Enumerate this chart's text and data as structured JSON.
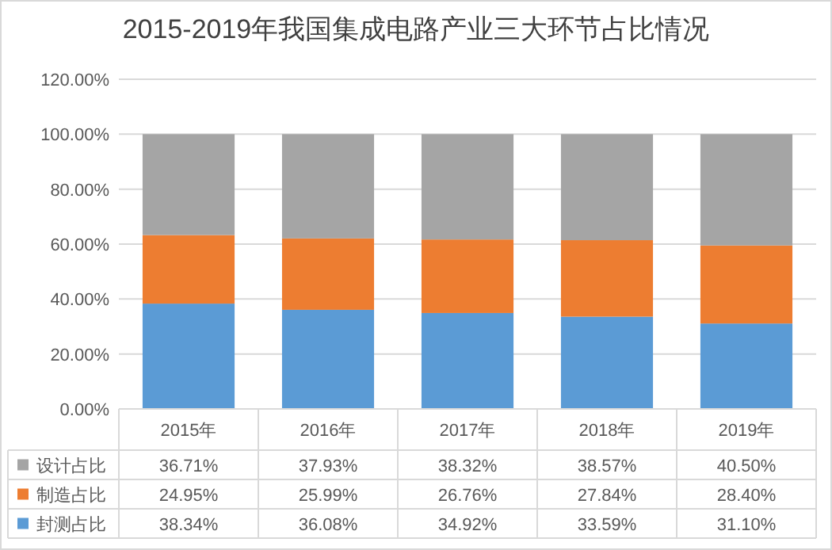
{
  "chart_data": {
    "type": "bar",
    "stacked": true,
    "title": "2015-2019年我国集成电路产业三大环节占比情况",
    "categories": [
      "2015年",
      "2016年",
      "2017年",
      "2018年",
      "2019年"
    ],
    "series": [
      {
        "name": "封测占比",
        "color": "#5b9bd5",
        "values": [
          38.34,
          36.08,
          34.92,
          33.59,
          31.1
        ],
        "value_labels": [
          "38.34%",
          "36.08%",
          "34.92%",
          "33.59%",
          "31.10%"
        ]
      },
      {
        "name": "制造占比",
        "color": "#ed7d31",
        "values": [
          24.95,
          25.99,
          26.76,
          27.84,
          28.4
        ],
        "value_labels": [
          "24.95%",
          "25.99%",
          "26.76%",
          "27.84%",
          "28.40%"
        ]
      },
      {
        "name": "设计占比",
        "color": "#a5a5a5",
        "values": [
          36.71,
          37.93,
          38.32,
          38.57,
          40.5
        ],
        "value_labels": [
          "36.71%",
          "37.93%",
          "38.32%",
          "38.57%",
          "40.50%"
        ]
      }
    ],
    "ylim": [
      0,
      120
    ],
    "yticks": [
      {
        "value": 0,
        "label": "0.00%"
      },
      {
        "value": 20,
        "label": "20.00%"
      },
      {
        "value": 40,
        "label": "40.00%"
      },
      {
        "value": 60,
        "label": "60.00%"
      },
      {
        "value": 80,
        "label": "80.00%"
      },
      {
        "value": 100,
        "label": "100.00%"
      },
      {
        "value": 120,
        "label": "120.00%"
      }
    ],
    "grid": "y",
    "legend": "bottom"
  }
}
